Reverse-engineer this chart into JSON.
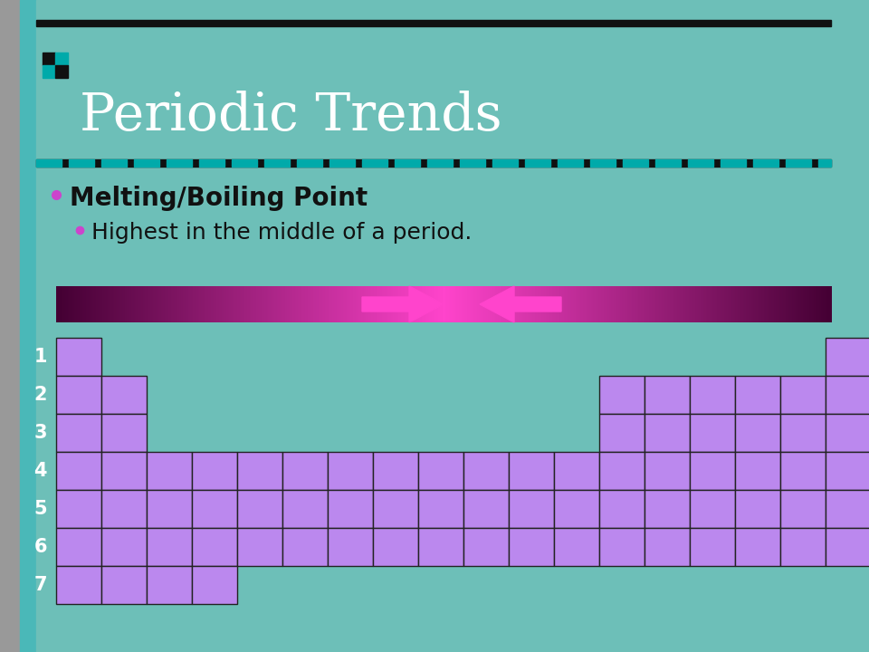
{
  "bg_color": "#6dbfb8",
  "title": "Periodic Trends",
  "title_color": "white",
  "title_fontsize": 42,
  "bullet1": "Melting/Boiling Point",
  "bullet2": "Highest in the middle of a period.",
  "bullet_color": "#111111",
  "bullet1_fontsize": 20,
  "bullet2_fontsize": 18,
  "bullet_dot_color": "#cc44cc",
  "cell_color": "#bb88ee",
  "cell_edge_color": "#222222",
  "top_line_color": "#111111",
  "dashed_line_bg": "#111111",
  "dashed_line_fg": "#00aaaa",
  "row_label_color": "white",
  "left_strip_color": "#aaaaaa",
  "teal_strip_color": "#00aaaa",
  "arrow_pink": "#ff44cc",
  "bar_dark": "#440033",
  "bar_mid": "#aa2288"
}
